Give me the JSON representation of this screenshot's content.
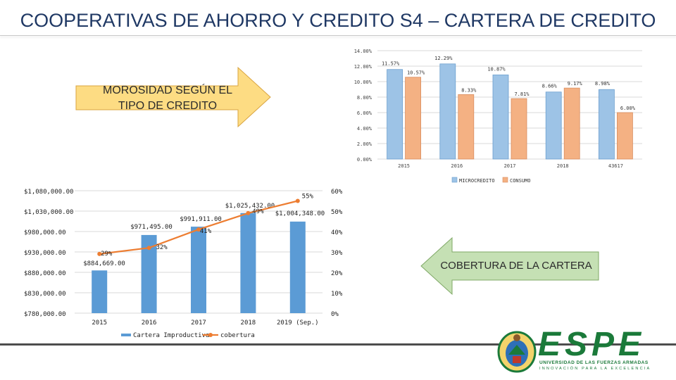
{
  "slide": {
    "title": "COOPERATIVAS DE AHORRO Y CREDITO S4 – CARTERA DE CREDITO",
    "arrow_morosidad": "MOROSIDAD SEGÚN EL TIPO DE CREDITO",
    "arrow_cobertura": "COBERTURA DE LA CARTERA",
    "logo": {
      "name": "ESPE",
      "subtitle": "UNIVERSIDAD DE LAS FUERZAS ARMADAS",
      "tagline": "INNOVACIÓN PARA LA EXCELENCIA"
    }
  },
  "colors": {
    "title": "#1f3864",
    "microcredito": "#9dc3e6",
    "consumo": "#f4b183",
    "cartera_bar": "#5b9bd5",
    "cobertura_line": "#ed7d31",
    "arrow_fill": "#fddc83",
    "arrow_fill2": "#c5e0b4",
    "logo_green": "#1b7a3a"
  },
  "chart_data": [
    {
      "type": "bar",
      "categories": [
        "2015",
        "2016",
        "2017",
        "2018",
        "43617"
      ],
      "series": [
        {
          "name": "MICROCREDITO",
          "values": [
            11.57,
            12.29,
            10.87,
            8.66,
            8.98
          ],
          "labels": [
            "11.57%",
            "12.29%",
            "10.87%",
            "8.66%",
            "8.98%"
          ]
        },
        {
          "name": "CONSUMO",
          "values": [
            10.57,
            8.33,
            7.81,
            9.17,
            6.0
          ],
          "labels": [
            "10.57%",
            "8.33%",
            "7.81%",
            "9.17%",
            "6.00%"
          ]
        }
      ],
      "ylim": [
        0,
        14
      ],
      "yticks": [
        "0.00%",
        "2.00%",
        "4.00%",
        "6.00%",
        "8.00%",
        "10.00%",
        "12.00%",
        "14.00%"
      ],
      "grid": true,
      "legend": "bottom"
    },
    {
      "type": "bar",
      "categories": [
        "2015",
        "2016",
        "2017",
        "2018",
        "2019 (Sep.)"
      ],
      "series": [
        {
          "name": "Cartera Improductiva",
          "kind": "bar",
          "values": [
            884669,
            971495,
            991911,
            1025432,
            1004348
          ],
          "labels": [
            "$884,669.00",
            "$971,495.00",
            "$991,911.00",
            "$1,025,432.00",
            "$1,004,348.00"
          ]
        },
        {
          "name": "cobertura",
          "kind": "line",
          "axis": "right",
          "values": [
            29,
            32,
            41,
            49,
            55
          ],
          "labels": [
            "29%",
            "32%",
            "41%",
            "49%",
            "55%"
          ]
        }
      ],
      "ylim": [
        780000,
        1080000
      ],
      "yticks": [
        "$780,000.00",
        "$830,000.00",
        "$880,000.00",
        "$930,000.00",
        "$980,000.00",
        "$1,030,000.00",
        "$1,080,000.00"
      ],
      "y2lim": [
        0,
        60
      ],
      "y2ticks": [
        "0%",
        "10%",
        "20%",
        "30%",
        "40%",
        "50%",
        "60%"
      ],
      "grid": true,
      "legend": "bottom"
    }
  ]
}
